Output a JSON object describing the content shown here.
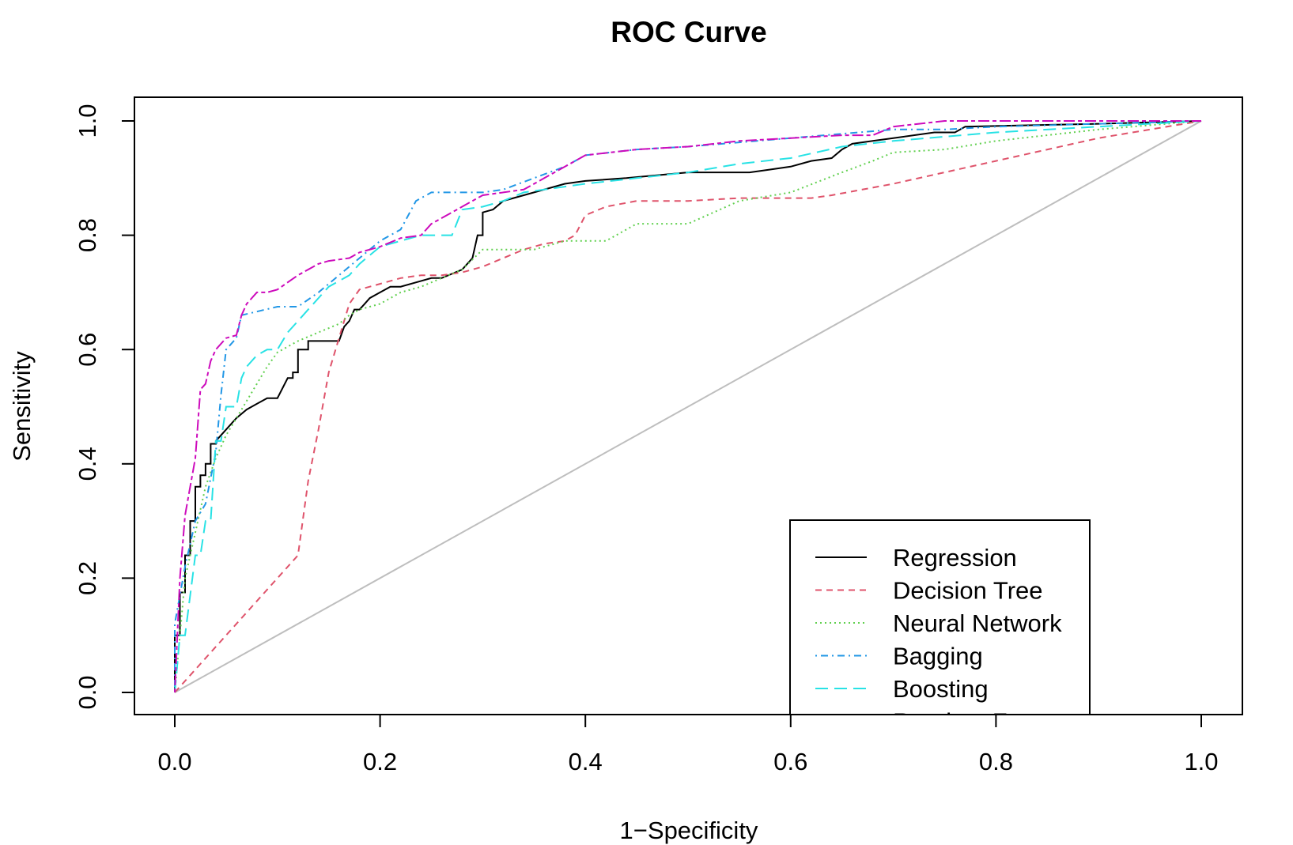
{
  "chart_data": {
    "type": "line",
    "title": "ROC Curve",
    "xlabel": "1−Specificity",
    "ylabel": "Sensitivity",
    "xlim": [
      0,
      1
    ],
    "ylim": [
      0,
      1
    ],
    "x_ticks": [
      "0.0",
      "0.2",
      "0.4",
      "0.6",
      "0.8",
      "1.0"
    ],
    "y_ticks": [
      "0.0",
      "0.2",
      "0.4",
      "0.6",
      "0.8",
      "1.0"
    ],
    "legend_position": "bottom-right",
    "reference_line": {
      "x": [
        0,
        1
      ],
      "y": [
        0,
        1
      ],
      "color": "#bebebe"
    },
    "series": [
      {
        "name": "Regression",
        "color": "#000000",
        "dash": "solid",
        "x": [
          0,
          0,
          0.005,
          0.005,
          0.01,
          0.01,
          0.015,
          0.015,
          0.02,
          0.02,
          0.025,
          0.025,
          0.03,
          0.03,
          0.035,
          0.035,
          0.04,
          0.04,
          0.05,
          0.06,
          0.07,
          0.08,
          0.09,
          0.1,
          0.11,
          0.115,
          0.115,
          0.12,
          0.12,
          0.13,
          0.13,
          0.135,
          0.135,
          0.14,
          0.15,
          0.16,
          0.165,
          0.17,
          0.175,
          0.18,
          0.185,
          0.19,
          0.2,
          0.21,
          0.22,
          0.24,
          0.25,
          0.26,
          0.28,
          0.29,
          0.295,
          0.3,
          0.3,
          0.31,
          0.32,
          0.33,
          0.34,
          0.35,
          0.37,
          0.38,
          0.4,
          0.44,
          0.5,
          0.52,
          0.56,
          0.58,
          0.6,
          0.62,
          0.64,
          0.65,
          0.66,
          0.68,
          0.7,
          0.74,
          0.76,
          0.77,
          0.9,
          1.0
        ],
        "y": [
          0,
          0.1,
          0.1,
          0.175,
          0.175,
          0.24,
          0.24,
          0.3,
          0.3,
          0.36,
          0.36,
          0.38,
          0.38,
          0.4,
          0.4,
          0.435,
          0.435,
          0.44,
          0.46,
          0.48,
          0.495,
          0.505,
          0.515,
          0.515,
          0.55,
          0.55,
          0.56,
          0.56,
          0.6,
          0.6,
          0.615,
          0.615,
          0.615,
          0.615,
          0.615,
          0.615,
          0.64,
          0.65,
          0.67,
          0.67,
          0.68,
          0.69,
          0.7,
          0.71,
          0.71,
          0.72,
          0.725,
          0.725,
          0.74,
          0.76,
          0.8,
          0.8,
          0.84,
          0.845,
          0.86,
          0.865,
          0.87,
          0.875,
          0.885,
          0.89,
          0.895,
          0.9,
          0.91,
          0.91,
          0.91,
          0.915,
          0.92,
          0.93,
          0.935,
          0.95,
          0.96,
          0.965,
          0.97,
          0.98,
          0.98,
          0.99,
          0.995,
          1.0
        ]
      },
      {
        "name": "Decision Tree",
        "color": "#df536b",
        "dash": "dashed",
        "x": [
          0,
          0.12,
          0.13,
          0.14,
          0.15,
          0.16,
          0.17,
          0.18,
          0.2,
          0.22,
          0.24,
          0.26,
          0.28,
          0.3,
          0.32,
          0.34,
          0.36,
          0.38,
          0.39,
          0.4,
          0.42,
          0.45,
          0.5,
          0.55,
          0.6,
          0.62,
          0.64,
          0.7,
          0.8,
          0.9,
          1.0
        ],
        "y": [
          0,
          0.24,
          0.37,
          0.46,
          0.56,
          0.62,
          0.68,
          0.705,
          0.715,
          0.725,
          0.73,
          0.73,
          0.735,
          0.745,
          0.76,
          0.775,
          0.785,
          0.79,
          0.8,
          0.835,
          0.85,
          0.86,
          0.86,
          0.865,
          0.865,
          0.865,
          0.87,
          0.89,
          0.93,
          0.97,
          1.0
        ]
      },
      {
        "name": "Neural Network",
        "color": "#61d04f",
        "dash": "dotted",
        "x": [
          0,
          0.01,
          0.02,
          0.03,
          0.04,
          0.05,
          0.06,
          0.07,
          0.08,
          0.09,
          0.1,
          0.12,
          0.14,
          0.16,
          0.17,
          0.18,
          0.2,
          0.22,
          0.24,
          0.26,
          0.28,
          0.3,
          0.35,
          0.38,
          0.42,
          0.45,
          0.5,
          0.55,
          0.6,
          0.65,
          0.68,
          0.7,
          0.75,
          0.8,
          0.9,
          1.0
        ],
        "y": [
          0,
          0.2,
          0.28,
          0.36,
          0.41,
          0.45,
          0.48,
          0.51,
          0.54,
          0.57,
          0.595,
          0.615,
          0.63,
          0.645,
          0.66,
          0.67,
          0.68,
          0.7,
          0.71,
          0.725,
          0.74,
          0.775,
          0.775,
          0.79,
          0.79,
          0.82,
          0.82,
          0.86,
          0.875,
          0.91,
          0.93,
          0.945,
          0.95,
          0.965,
          0.985,
          1.0
        ]
      },
      {
        "name": "Bagging",
        "color": "#2297e6",
        "dash": "dotdash",
        "x": [
          0,
          0,
          0.01,
          0.02,
          0.03,
          0.04,
          0.045,
          0.05,
          0.06,
          0.065,
          0.1,
          0.12,
          0.14,
          0.16,
          0.18,
          0.2,
          0.22,
          0.235,
          0.25,
          0.28,
          0.3,
          0.32,
          0.35,
          0.38,
          0.4,
          0.45,
          0.5,
          0.6,
          0.7,
          0.75,
          0.8,
          1.0
        ],
        "y": [
          0,
          0.12,
          0.22,
          0.3,
          0.33,
          0.42,
          0.52,
          0.6,
          0.62,
          0.66,
          0.675,
          0.675,
          0.7,
          0.73,
          0.76,
          0.79,
          0.81,
          0.86,
          0.875,
          0.875,
          0.875,
          0.88,
          0.9,
          0.92,
          0.94,
          0.95,
          0.955,
          0.97,
          0.985,
          0.985,
          0.99,
          1.0
        ]
      },
      {
        "name": "Boosting",
        "color": "#28e2e5",
        "dash": "longdash",
        "x": [
          0,
          0.005,
          0.01,
          0.02,
          0.025,
          0.03,
          0.035,
          0.04,
          0.045,
          0.05,
          0.06,
          0.065,
          0.07,
          0.08,
          0.09,
          0.1,
          0.11,
          0.12,
          0.13,
          0.15,
          0.17,
          0.18,
          0.2,
          0.22,
          0.24,
          0.27,
          0.28,
          0.3,
          0.32,
          0.34,
          0.36,
          0.4,
          0.45,
          0.5,
          0.55,
          0.6,
          0.65,
          0.7,
          0.8,
          0.9,
          1.0
        ],
        "y": [
          0,
          0.1,
          0.1,
          0.24,
          0.24,
          0.3,
          0.3,
          0.44,
          0.44,
          0.5,
          0.5,
          0.55,
          0.57,
          0.59,
          0.6,
          0.6,
          0.63,
          0.65,
          0.67,
          0.71,
          0.73,
          0.75,
          0.78,
          0.79,
          0.8,
          0.8,
          0.845,
          0.85,
          0.86,
          0.875,
          0.88,
          0.89,
          0.9,
          0.91,
          0.925,
          0.935,
          0.955,
          0.965,
          0.98,
          0.99,
          1.0
        ]
      },
      {
        "name": "Random Forest",
        "color": "#cd0bbc",
        "dash": "twodash",
        "x": [
          0,
          0.005,
          0.01,
          0.02,
          0.025,
          0.03,
          0.035,
          0.04,
          0.05,
          0.06,
          0.065,
          0.07,
          0.08,
          0.09,
          0.1,
          0.12,
          0.13,
          0.14,
          0.15,
          0.17,
          0.18,
          0.2,
          0.22,
          0.24,
          0.25,
          0.27,
          0.29,
          0.3,
          0.32,
          0.34,
          0.36,
          0.4,
          0.45,
          0.5,
          0.55,
          0.6,
          0.65,
          0.68,
          0.7,
          0.75,
          1.0
        ],
        "y": [
          0,
          0.2,
          0.31,
          0.41,
          0.53,
          0.54,
          0.58,
          0.6,
          0.62,
          0.625,
          0.66,
          0.68,
          0.7,
          0.7,
          0.705,
          0.73,
          0.74,
          0.75,
          0.755,
          0.76,
          0.77,
          0.78,
          0.795,
          0.8,
          0.82,
          0.84,
          0.86,
          0.87,
          0.875,
          0.88,
          0.9,
          0.94,
          0.95,
          0.955,
          0.965,
          0.97,
          0.975,
          0.975,
          0.99,
          1.0,
          1.0
        ]
      }
    ]
  }
}
